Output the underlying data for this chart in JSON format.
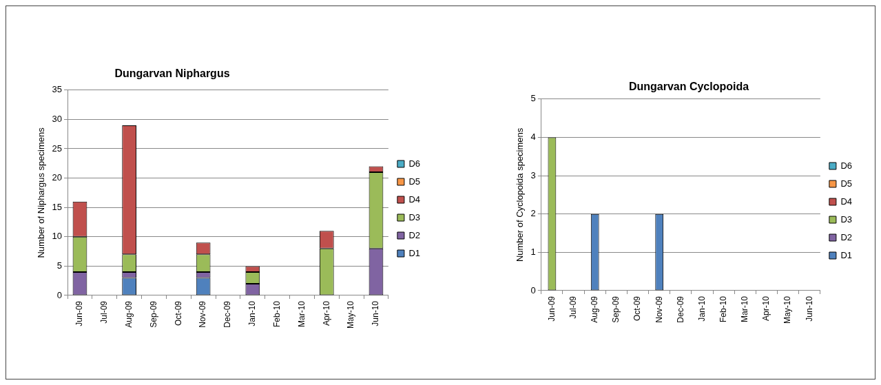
{
  "chart_data": [
    {
      "type": "bar",
      "title": "Dungarvan Niphargus",
      "ylabel": "Number of Niphargus specimens",
      "categories": [
        "Jun-09",
        "Jul-09",
        "Aug-09",
        "Sep-09",
        "Oct-09",
        "Nov-09",
        "Dec-09",
        "Jan-10",
        "Feb-10",
        "Mar-10",
        "Apr-10",
        "May-10",
        "Jun-10"
      ],
      "series": [
        {
          "name": "D1",
          "color": "#4f81bd",
          "values": [
            null,
            null,
            3,
            null,
            null,
            3,
            null,
            null,
            null,
            null,
            null,
            null,
            null
          ]
        },
        {
          "name": "D2",
          "color": "#8064a2",
          "values": [
            4,
            null,
            1,
            null,
            null,
            1,
            null,
            2,
            null,
            null,
            null,
            null,
            8
          ]
        },
        {
          "name": "D3",
          "color": "#9bbb59",
          "values": [
            6,
            null,
            3,
            null,
            null,
            3,
            null,
            2,
            null,
            null,
            8,
            null,
            13
          ]
        },
        {
          "name": "D4",
          "color": "#c0504d",
          "values": [
            6,
            null,
            22,
            null,
            null,
            2,
            null,
            1,
            null,
            null,
            3,
            null,
            1
          ]
        },
        {
          "name": "D5",
          "color": "#f79646",
          "values": [
            null,
            null,
            null,
            null,
            null,
            null,
            null,
            null,
            null,
            null,
            null,
            null,
            null
          ]
        },
        {
          "name": "D6",
          "color": "#4bacc6",
          "values": [
            null,
            null,
            null,
            null,
            null,
            null,
            null,
            null,
            null,
            null,
            null,
            null,
            null
          ]
        }
      ],
      "stacked": true,
      "ylim": [
        0,
        35
      ],
      "yticks": [
        0,
        5,
        10,
        15,
        20,
        25,
        30,
        35
      ],
      "grid": "y",
      "legend": "right"
    },
    {
      "type": "bar",
      "title": "Dungarvan Cyclopoida",
      "ylabel": "Number of Cyclopoida specimens",
      "categories": [
        "Jun-09",
        "Jul-09",
        "Aug-09",
        "Sep-09",
        "Oct-09",
        "Nov-09",
        "Dec-09",
        "Jan-10",
        "Feb-10",
        "Mar-10",
        "Apr-10",
        "May-10",
        "Jun-10"
      ],
      "series": [
        {
          "name": "D1",
          "color": "#4f81bd",
          "values": [
            null,
            null,
            2,
            null,
            null,
            2,
            null,
            null,
            null,
            null,
            null,
            null,
            null
          ]
        },
        {
          "name": "D2",
          "color": "#8064a2",
          "values": [
            null,
            null,
            null,
            null,
            null,
            null,
            null,
            null,
            null,
            null,
            null,
            null,
            null
          ]
        },
        {
          "name": "D3",
          "color": "#9bbb59",
          "values": [
            4,
            null,
            null,
            null,
            null,
            null,
            null,
            null,
            null,
            null,
            null,
            null,
            null
          ]
        },
        {
          "name": "D4",
          "color": "#c0504d",
          "values": [
            null,
            null,
            null,
            null,
            null,
            null,
            null,
            null,
            null,
            null,
            null,
            null,
            null
          ]
        },
        {
          "name": "D5",
          "color": "#f79646",
          "values": [
            null,
            null,
            null,
            null,
            null,
            null,
            null,
            null,
            null,
            null,
            null,
            null,
            null
          ]
        },
        {
          "name": "D6",
          "color": "#4bacc6",
          "values": [
            null,
            null,
            null,
            null,
            null,
            null,
            null,
            null,
            null,
            null,
            null,
            null,
            null
          ]
        }
      ],
      "stacked": true,
      "ylim": [
        0,
        5
      ],
      "yticks": [
        0,
        1,
        2,
        3,
        4,
        5
      ],
      "grid": "y",
      "legend": "right"
    }
  ]
}
